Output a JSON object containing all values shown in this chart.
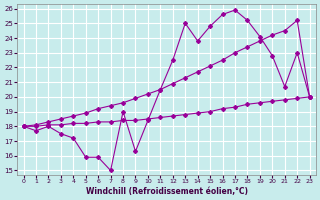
{
  "background_color": "#c8ecec",
  "grid_color": "#ffffff",
  "line_color": "#990099",
  "xlabel": "Windchill (Refroidissement éolien,°C)",
  "xlim": [
    -0.5,
    23.5
  ],
  "ylim": [
    14.7,
    26.3
  ],
  "yticks": [
    15,
    16,
    17,
    18,
    19,
    20,
    21,
    22,
    23,
    24,
    25,
    26
  ],
  "xticks": [
    0,
    1,
    2,
    3,
    4,
    5,
    6,
    7,
    8,
    9,
    10,
    11,
    12,
    13,
    14,
    15,
    16,
    17,
    18,
    19,
    20,
    21,
    22,
    23
  ],
  "series1_x": [
    0,
    1,
    2,
    3,
    4,
    5,
    6,
    7,
    8,
    9,
    10,
    11,
    12,
    13,
    14,
    15,
    16,
    17,
    18,
    19,
    20,
    21,
    22,
    23
  ],
  "series1_y": [
    18.0,
    17.7,
    18.0,
    17.5,
    17.2,
    15.9,
    15.9,
    15.0,
    19.0,
    16.3,
    18.4,
    20.5,
    22.5,
    25.0,
    23.8,
    24.8,
    25.6,
    25.9,
    25.2,
    24.1,
    22.8,
    20.7,
    23.0,
    20.0
  ],
  "series2_x": [
    0,
    1,
    2,
    3,
    4,
    5,
    6,
    7,
    8,
    9,
    10,
    11,
    12,
    13,
    14,
    15,
    16,
    17,
    18,
    19,
    20,
    21,
    22,
    23
  ],
  "series2_y": [
    18.0,
    18.1,
    18.3,
    18.5,
    18.7,
    18.9,
    19.2,
    19.4,
    19.6,
    19.9,
    20.2,
    20.5,
    20.9,
    21.3,
    21.7,
    22.1,
    22.5,
    23.0,
    23.4,
    23.8,
    24.2,
    24.5,
    25.2,
    20.0
  ],
  "series3_x": [
    0,
    1,
    2,
    3,
    4,
    5,
    6,
    7,
    8,
    9,
    10,
    11,
    12,
    13,
    14,
    15,
    16,
    17,
    18,
    19,
    20,
    21,
    22,
    23
  ],
  "series3_y": [
    18.0,
    18.0,
    18.1,
    18.1,
    18.2,
    18.2,
    18.3,
    18.3,
    18.4,
    18.4,
    18.5,
    18.6,
    18.7,
    18.8,
    18.9,
    19.0,
    19.2,
    19.3,
    19.5,
    19.6,
    19.7,
    19.8,
    19.9,
    20.0
  ]
}
